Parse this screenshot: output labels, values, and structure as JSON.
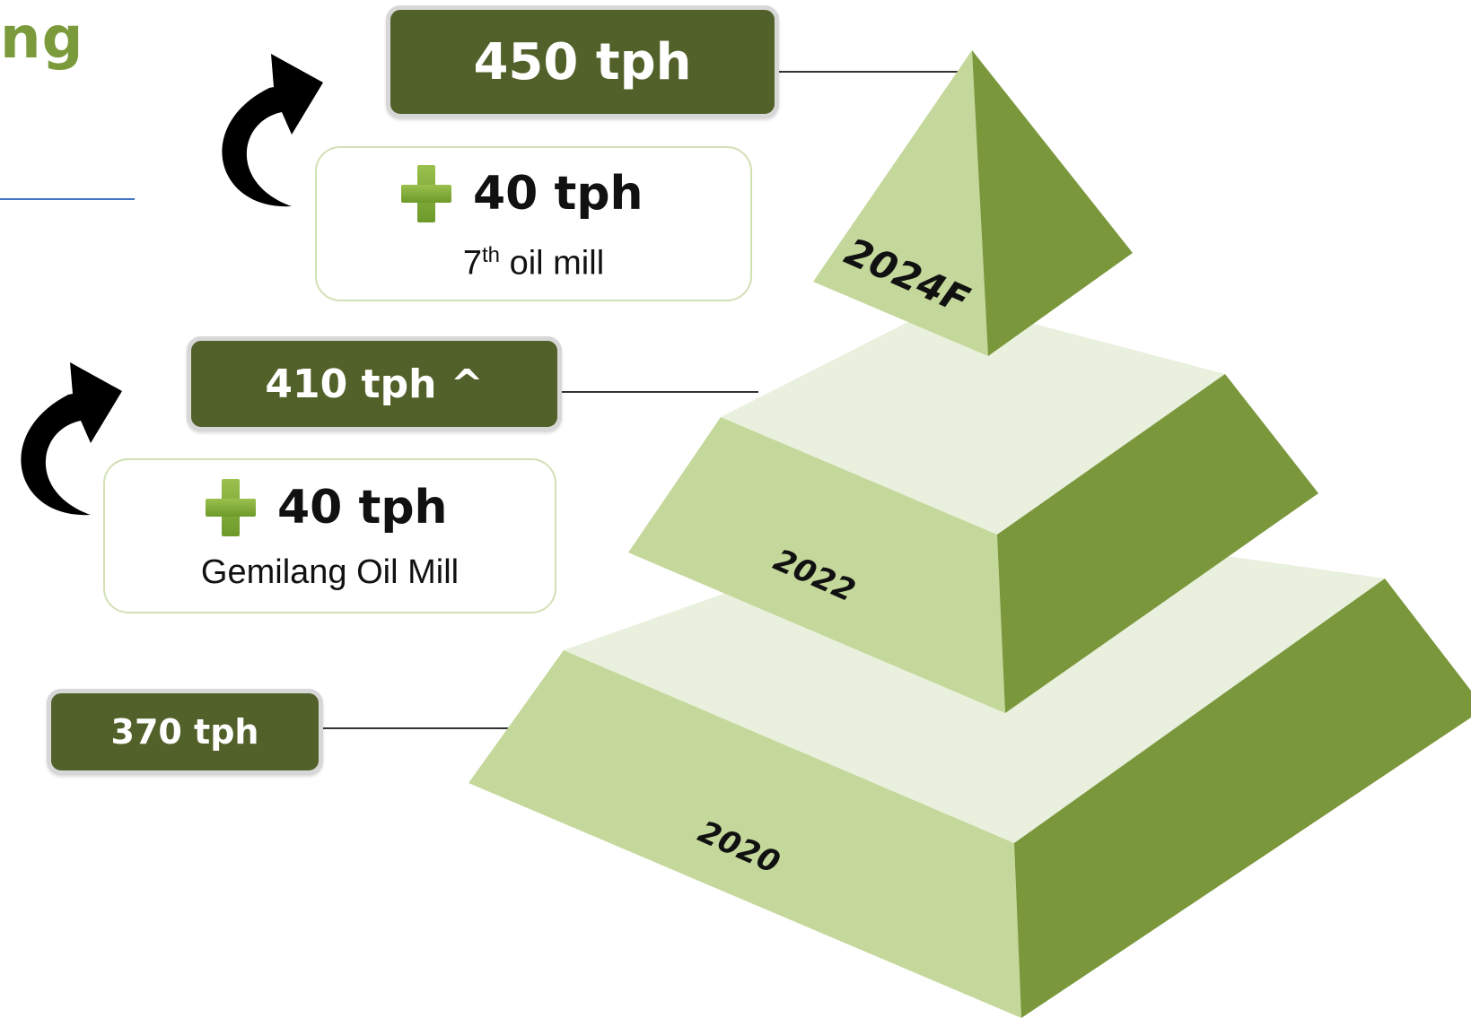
{
  "heading_fragment": "ng",
  "capacities": [
    {
      "label": "450 tph"
    },
    {
      "label": "410 tph ^"
    },
    {
      "label": "370 tph"
    }
  ],
  "additions": [
    {
      "amount": "40 tph",
      "desc_main": "7",
      "desc_sup": "th",
      "desc_rest": " oil mill"
    },
    {
      "amount": "40 tph",
      "desc": "Gemilang Oil Mill"
    }
  ],
  "tiers": [
    "2024F",
    "2022",
    "2020"
  ],
  "colors": {
    "front": "#c5d89b",
    "side": "#7a973c",
    "top": "#e9f0dd",
    "box": "#526129",
    "heading": "#7a9a3c"
  }
}
